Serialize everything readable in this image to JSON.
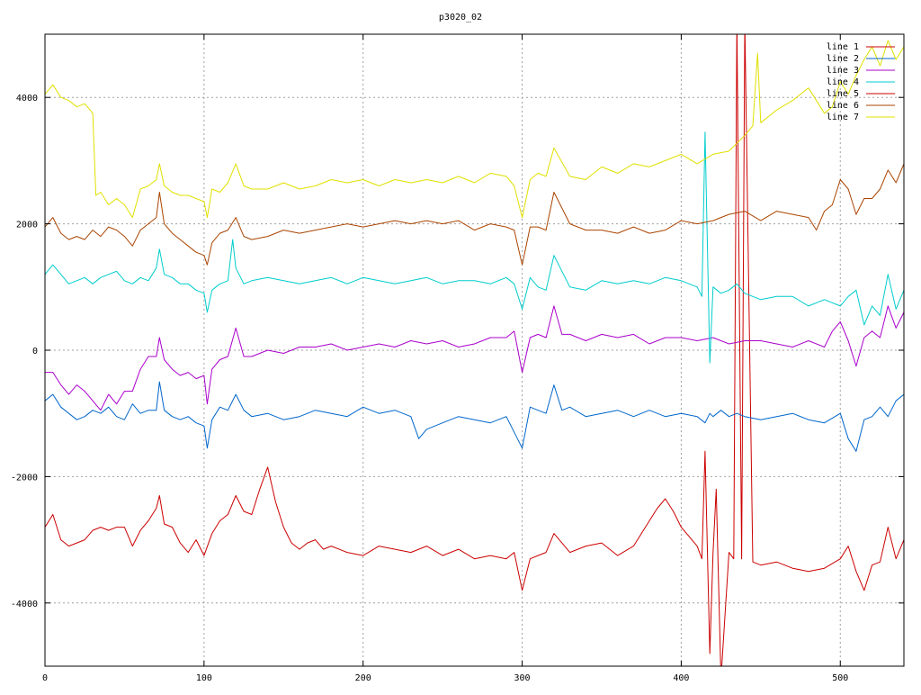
{
  "chart_data": {
    "type": "line",
    "title": "p3020_02",
    "xlabel": "",
    "ylabel": "",
    "xlim": [
      0,
      540
    ],
    "ylim": [
      -5000,
      5000
    ],
    "xticks": [
      0,
      100,
      200,
      300,
      400,
      500
    ],
    "yticks": [
      -4000,
      -2000,
      0,
      2000,
      4000
    ],
    "ytick_labels": [
      "-4000",
      "-2000",
      "0",
      "2000",
      "4000"
    ],
    "grid": true,
    "legend_position": "top-right",
    "series": [
      {
        "name": "line 1",
        "color": "#cc0000",
        "x": [
          0,
          5,
          10,
          15,
          20,
          25,
          30,
          35,
          40,
          45,
          50,
          55,
          60,
          65,
          70,
          72,
          75,
          80,
          85,
          90,
          95,
          100,
          105,
          110,
          115,
          120,
          125,
          130,
          135,
          140,
          145,
          150,
          155,
          160,
          165,
          170,
          175,
          180,
          190,
          200,
          210,
          220,
          230,
          240,
          250,
          260,
          270,
          280,
          290,
          295,
          300,
          305,
          310,
          315,
          320,
          330,
          340,
          350,
          360,
          370,
          380,
          385,
          390,
          395,
          400,
          405,
          410,
          413,
          415,
          418,
          420,
          422,
          425,
          430,
          433,
          435,
          438,
          440,
          445,
          450,
          460,
          470,
          480,
          490,
          500,
          505,
          510,
          515,
          520,
          525,
          530,
          535,
          540
        ],
        "y": [
          -2800,
          -2600,
          -3000,
          -3100,
          -3050,
          -3000,
          -2850,
          -2800,
          -2850,
          -2800,
          -2800,
          -3100,
          -2850,
          -2700,
          -2500,
          -2300,
          -2750,
          -2800,
          -3050,
          -3200,
          -3000,
          -3250,
          -2900,
          -2700,
          -2600,
          -2300,
          -2550,
          -2600,
          -2200,
          -1850,
          -2400,
          -2800,
          -3050,
          -3150,
          -3050,
          -3000,
          -3150,
          -3100,
          -3200,
          -3250,
          -3100,
          -3150,
          -3200,
          -3100,
          -3250,
          -3150,
          -3300,
          -3250,
          -3300,
          -3200,
          -3800,
          -3300,
          -3250,
          -3200,
          -2900,
          -3200,
          -3100,
          -3050,
          -3250,
          -3100,
          -2700,
          -2500,
          -2350,
          -2550,
          -2800,
          -2950,
          -3100,
          -3300,
          -1600,
          -4800,
          -3200,
          -2200,
          -5200,
          -3200,
          -3300,
          5200,
          -3300,
          5200,
          -3350,
          -3400,
          -3350,
          -3450,
          -3500,
          -3450,
          -3300,
          -3100,
          -3500,
          -3800,
          -3400,
          -3350,
          -2800,
          -3300,
          -3000
        ]
      },
      {
        "name": "line 2",
        "color": "#0066cc",
        "x": [
          0,
          5,
          10,
          15,
          20,
          25,
          30,
          35,
          40,
          45,
          50,
          55,
          60,
          65,
          70,
          72,
          75,
          80,
          85,
          90,
          95,
          100,
          102,
          105,
          110,
          115,
          120,
          125,
          130,
          140,
          150,
          160,
          170,
          180,
          190,
          200,
          210,
          220,
          230,
          235,
          240,
          250,
          260,
          270,
          280,
          290,
          300,
          305,
          310,
          315,
          320,
          325,
          330,
          340,
          350,
          360,
          370,
          380,
          390,
          400,
          410,
          415,
          418,
          420,
          425,
          430,
          435,
          440,
          450,
          460,
          470,
          480,
          490,
          500,
          505,
          510,
          515,
          520,
          525,
          530,
          535,
          540
        ],
        "y": [
          -800,
          -700,
          -900,
          -1000,
          -1100,
          -1050,
          -950,
          -1000,
          -900,
          -1050,
          -1100,
          -850,
          -1000,
          -950,
          -950,
          -500,
          -950,
          -1050,
          -1100,
          -1050,
          -1150,
          -1200,
          -1550,
          -1100,
          -900,
          -950,
          -700,
          -950,
          -1050,
          -1000,
          -1100,
          -1050,
          -950,
          -1000,
          -1050,
          -900,
          -1000,
          -950,
          -1050,
          -1400,
          -1250,
          -1150,
          -1050,
          -1100,
          -1150,
          -1050,
          -1550,
          -900,
          -950,
          -1000,
          -550,
          -950,
          -900,
          -1050,
          -1000,
          -950,
          -1050,
          -950,
          -1050,
          -1000,
          -1050,
          -1150,
          -1000,
          -1050,
          -950,
          -1050,
          -1000,
          -1050,
          -1100,
          -1050,
          -1000,
          -1100,
          -1150,
          -1000,
          -1400,
          -1600,
          -1100,
          -1050,
          -900,
          -1050,
          -800,
          -700
        ]
      },
      {
        "name": "line 3",
        "color": "#aa00cc",
        "x": [
          0,
          5,
          10,
          15,
          20,
          25,
          30,
          35,
          40,
          45,
          50,
          55,
          60,
          65,
          70,
          72,
          75,
          80,
          85,
          90,
          95,
          100,
          102,
          105,
          110,
          115,
          120,
          125,
          130,
          140,
          150,
          160,
          170,
          180,
          190,
          200,
          210,
          220,
          230,
          240,
          250,
          260,
          270,
          280,
          290,
          295,
          300,
          305,
          310,
          315,
          320,
          325,
          330,
          340,
          350,
          360,
          370,
          380,
          390,
          400,
          410,
          420,
          430,
          440,
          450,
          460,
          470,
          480,
          490,
          495,
          500,
          505,
          510,
          515,
          520,
          525,
          530,
          535,
          540
        ],
        "y": [
          -350,
          -350,
          -550,
          -700,
          -550,
          -650,
          -800,
          -950,
          -700,
          -850,
          -650,
          -650,
          -300,
          -100,
          -100,
          200,
          -150,
          -300,
          -400,
          -350,
          -450,
          -400,
          -850,
          -300,
          -150,
          -100,
          350,
          -100,
          -100,
          0,
          -50,
          50,
          50,
          100,
          0,
          50,
          100,
          50,
          150,
          100,
          150,
          50,
          100,
          200,
          200,
          300,
          -350,
          200,
          250,
          200,
          700,
          250,
          250,
          150,
          250,
          200,
          250,
          100,
          200,
          200,
          150,
          200,
          100,
          150,
          150,
          100,
          50,
          150,
          50,
          300,
          450,
          150,
          -250,
          200,
          300,
          200,
          700,
          350,
          600
        ]
      },
      {
        "name": "line 4",
        "color": "#00cccc",
        "x": [
          0,
          5,
          10,
          15,
          20,
          25,
          30,
          35,
          40,
          45,
          50,
          55,
          60,
          65,
          70,
          72,
          75,
          80,
          85,
          90,
          95,
          100,
          102,
          105,
          110,
          115,
          118,
          120,
          125,
          130,
          140,
          150,
          160,
          170,
          180,
          190,
          200,
          210,
          220,
          230,
          240,
          250,
          260,
          270,
          280,
          290,
          295,
          300,
          305,
          310,
          315,
          320,
          330,
          340,
          350,
          360,
          370,
          380,
          390,
          400,
          410,
          413,
          415,
          418,
          420,
          425,
          430,
          435,
          440,
          450,
          460,
          470,
          480,
          490,
          500,
          505,
          510,
          515,
          520,
          525,
          530,
          535,
          540
        ],
        "y": [
          1200,
          1350,
          1200,
          1050,
          1100,
          1150,
          1050,
          1150,
          1200,
          1250,
          1100,
          1050,
          1150,
          1100,
          1300,
          1600,
          1200,
          1150,
          1050,
          1050,
          950,
          900,
          600,
          950,
          1050,
          1100,
          1750,
          1300,
          1050,
          1100,
          1150,
          1100,
          1050,
          1100,
          1150,
          1050,
          1150,
          1100,
          1050,
          1100,
          1150,
          1050,
          1100,
          1100,
          1050,
          1150,
          1050,
          650,
          1150,
          1000,
          950,
          1500,
          1000,
          950,
          1100,
          1050,
          1100,
          1050,
          1150,
          1100,
          1000,
          850,
          3450,
          -200,
          1000,
          900,
          950,
          1050,
          900,
          800,
          850,
          850,
          700,
          800,
          700,
          850,
          950,
          400,
          700,
          550,
          1200,
          650,
          950
        ]
      },
      {
        "name": "line 5",
        "color": "#cc0000",
        "x": [],
        "y": []
      },
      {
        "name": "line 6",
        "color": "#aa4400",
        "x": [
          0,
          5,
          10,
          15,
          20,
          25,
          30,
          35,
          40,
          45,
          50,
          55,
          60,
          65,
          70,
          72,
          75,
          80,
          85,
          90,
          95,
          100,
          102,
          105,
          110,
          115,
          120,
          125,
          130,
          140,
          150,
          160,
          170,
          180,
          190,
          200,
          210,
          220,
          230,
          240,
          250,
          260,
          270,
          280,
          290,
          295,
          300,
          305,
          310,
          315,
          320,
          330,
          340,
          350,
          360,
          370,
          380,
          390,
          400,
          410,
          420,
          430,
          440,
          450,
          460,
          470,
          480,
          485,
          490,
          495,
          500,
          505,
          510,
          515,
          520,
          525,
          530,
          535,
          540
        ],
        "y": [
          1950,
          2100,
          1850,
          1750,
          1800,
          1750,
          1900,
          1800,
          1950,
          1900,
          1800,
          1650,
          1900,
          2000,
          2100,
          2500,
          2000,
          1850,
          1750,
          1650,
          1550,
          1500,
          1350,
          1700,
          1850,
          1900,
          2100,
          1800,
          1750,
          1800,
          1900,
          1850,
          1900,
          1950,
          2000,
          1950,
          2000,
          2050,
          2000,
          2050,
          2000,
          2050,
          1900,
          2000,
          1950,
          1900,
          1350,
          1950,
          1950,
          1900,
          2500,
          2000,
          1900,
          1900,
          1850,
          1950,
          1850,
          1900,
          2050,
          2000,
          2050,
          2150,
          2200,
          2050,
          2200,
          2150,
          2100,
          1900,
          2200,
          2300,
          2700,
          2550,
          2150,
          2400,
          2400,
          2550,
          2850,
          2650,
          2950
        ]
      },
      {
        "name": "line 7",
        "color": "#e0e000",
        "x": [
          0,
          5,
          10,
          15,
          20,
          25,
          30,
          32,
          35,
          40,
          45,
          50,
          55,
          60,
          65,
          70,
          72,
          75,
          80,
          85,
          90,
          95,
          100,
          102,
          105,
          110,
          115,
          120,
          125,
          130,
          140,
          150,
          160,
          170,
          180,
          190,
          200,
          210,
          220,
          230,
          240,
          250,
          260,
          270,
          280,
          290,
          295,
          300,
          305,
          310,
          315,
          320,
          330,
          340,
          350,
          360,
          370,
          380,
          390,
          400,
          410,
          420,
          430,
          440,
          445,
          448,
          450,
          460,
          470,
          480,
          490,
          495,
          500,
          505,
          510,
          515,
          520,
          525,
          530,
          535,
          540
        ],
        "y": [
          4050,
          4200,
          4000,
          3950,
          3850,
          3900,
          3750,
          2450,
          2500,
          2300,
          2400,
          2300,
          2100,
          2550,
          2600,
          2700,
          2950,
          2600,
          2500,
          2450,
          2450,
          2400,
          2350,
          2100,
          2550,
          2500,
          2650,
          2950,
          2600,
          2550,
          2550,
          2650,
          2550,
          2600,
          2700,
          2650,
          2700,
          2600,
          2700,
          2650,
          2700,
          2650,
          2750,
          2650,
          2800,
          2750,
          2600,
          2100,
          2700,
          2800,
          2750,
          3200,
          2750,
          2700,
          2900,
          2800,
          2950,
          2900,
          3000,
          3100,
          2950,
          3100,
          3150,
          3400,
          3550,
          4700,
          3600,
          3800,
          3950,
          4150,
          3750,
          3850,
          4250,
          4050,
          4350,
          4600,
          4800,
          4500,
          4900,
          4600,
          4800
        ]
      }
    ]
  }
}
